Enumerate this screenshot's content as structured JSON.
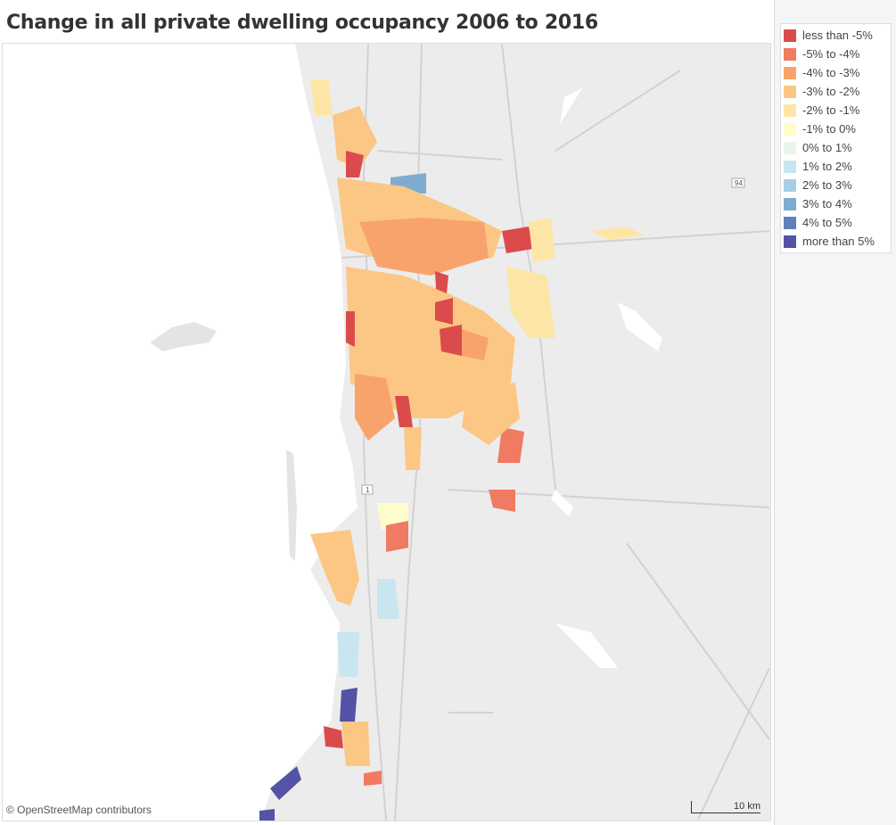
{
  "title": "Change in all private dwelling occupancy 2006 to 2016",
  "legend": [
    {
      "label": "less than -5%",
      "color": "#dc4b4b"
    },
    {
      "label": "-5% to -4%",
      "color": "#f07a62"
    },
    {
      "label": "-4% to -3%",
      "color": "#f9a36c"
    },
    {
      "label": "-3% to -2%",
      "color": "#fcc784"
    },
    {
      "label": "-2% to -1%",
      "color": "#fde6a5"
    },
    {
      "label": "-1% to 0%",
      "color": "#fffccc"
    },
    {
      "label": "0% to 1%",
      "color": "#e8f6ec"
    },
    {
      "label": "1% to 2%",
      "color": "#c8e6ef"
    },
    {
      "label": "2% to 3%",
      "color": "#a5cfe3"
    },
    {
      "label": "3% to 4%",
      "color": "#7fabce"
    },
    {
      "label": "4% to 5%",
      "color": "#5e80bb"
    },
    {
      "label": "more than 5%",
      "color": "#5453a6"
    }
  ],
  "map": {
    "attribution": "© OpenStreetMap contributors",
    "scale": "10 km",
    "road_labels": [
      "94",
      "1"
    ]
  }
}
